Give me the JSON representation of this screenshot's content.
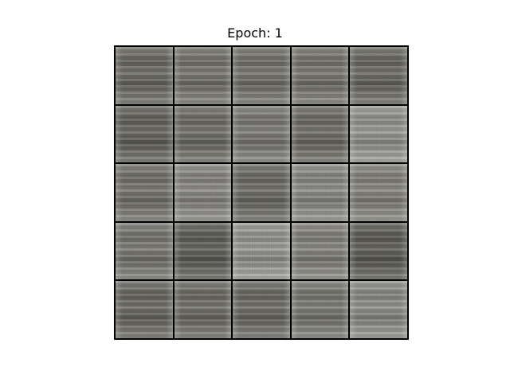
{
  "figure": {
    "title": "Epoch: 1",
    "grid": {
      "rows": 5,
      "cols": 5
    },
    "tiles": [
      {
        "tone": "#6b6a63"
      },
      {
        "tone": "#76756e"
      },
      {
        "tone": "#74736c"
      },
      {
        "tone": "#77766f"
      },
      {
        "tone": "#6a6962"
      },
      {
        "tone": "#64635d"
      },
      {
        "tone": "#6f6e68"
      },
      {
        "tone": "#7d7c77"
      },
      {
        "tone": "#6e6d66"
      },
      {
        "tone": "#9a9997"
      },
      {
        "tone": "#75746d"
      },
      {
        "tone": "#8c8b86"
      },
      {
        "tone": "#6d6c66"
      },
      {
        "tone": "#8e8d89"
      },
      {
        "tone": "#87867f"
      },
      {
        "tone": "#797872"
      },
      {
        "tone": "#5f5e58"
      },
      {
        "tone": "#9b9b98"
      },
      {
        "tone": "#86857f"
      },
      {
        "tone": "#5d5c55"
      },
      {
        "tone": "#6a6962"
      },
      {
        "tone": "#6e6d67"
      },
      {
        "tone": "#6c6b65"
      },
      {
        "tone": "#7b7a74"
      },
      {
        "tone": "#908f8b"
      }
    ]
  }
}
